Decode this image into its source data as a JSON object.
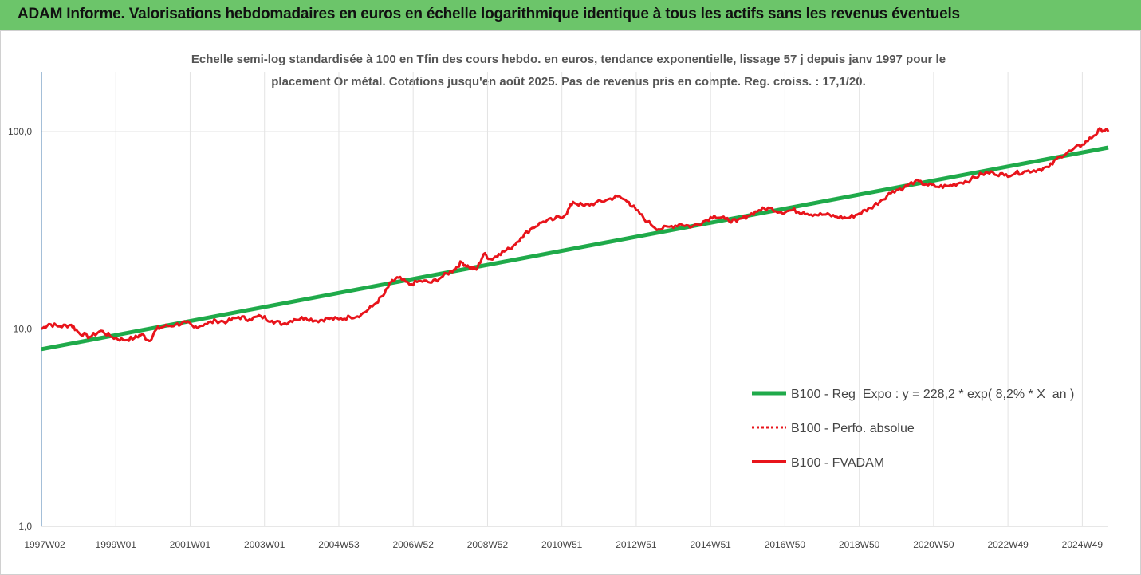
{
  "header": {
    "title": "ADAM Informe. Valorisations hebdomadaires en euros en échelle logarithmique identique à tous les actifs sans les revenus éventuels"
  },
  "colors": {
    "title_bar": "#6cc56a",
    "regression": "#1faa4a",
    "series": "#e8141b",
    "corner": "#f0b400"
  },
  "chart_data": {
    "type": "line",
    "subtitle_lines": [
      "Echelle semi-log standardisée à 100 en Tfin des cours hebdo. en euros, tendance exponentielle, lissage 57 j depuis janv 1997 pour le",
      "placement Or métal. Cotations jusqu'en août 2025. Pas de revenus pris en compte. Reg. croiss. : 17,1/20."
    ],
    "y_scale": "log",
    "ylim": [
      1,
      200
    ],
    "y_ticks": [
      "1,0",
      "10,0",
      "100,0"
    ],
    "y_tick_values": [
      1,
      10,
      100
    ],
    "x_range": [
      1997.0,
      2025.7
    ],
    "x_tick_labels": [
      "1997W02",
      "1999W01",
      "2001W01",
      "2003W01",
      "2004W53",
      "2006W52",
      "2008W52",
      "2010W51",
      "2012W51",
      "2014W51",
      "2016W50",
      "2018W50",
      "2020W50",
      "2022W49",
      "2024W49"
    ],
    "x_tick_positions": [
      1997.0,
      1999.0,
      2001.0,
      2003.0,
      2005.0,
      2007.0,
      2009.0,
      2011.0,
      2013.0,
      2015.0,
      2017.0,
      2019.0,
      2021.0,
      2023.0,
      2025.0
    ],
    "grid": "vertical and horizontal gridlines",
    "legend_position": "bottom-right",
    "series": [
      {
        "name": "B100 - Reg_Expo : y = 228,2 * exp( 8,2% *  X_an )",
        "style": "solid-thick",
        "color": "#1faa4a",
        "x": [
          1997.0,
          2025.7
        ],
        "y": [
          7.9,
          83
        ]
      },
      {
        "name": "B100 - Perfo. absolue",
        "style": "dotted",
        "color": "#e8141b",
        "x": [],
        "y": []
      },
      {
        "name": "B100 - FVADAM",
        "style": "solid",
        "color": "#e8141b",
        "x": [
          1997.0,
          1997.2,
          1997.5,
          1997.8,
          1998.0,
          1998.3,
          1998.6,
          1998.9,
          1999.2,
          1999.5,
          1999.7,
          1999.9,
          2000.1,
          2000.3,
          2000.6,
          2000.9,
          2001.1,
          2001.4,
          2001.7,
          2002.0,
          2002.3,
          2002.6,
          2002.9,
          2003.2,
          2003.5,
          2003.8,
          2004.1,
          2004.4,
          2004.7,
          2005.0,
          2005.3,
          2005.6,
          2005.9,
          2006.2,
          2006.4,
          2006.6,
          2006.9,
          2007.2,
          2007.5,
          2007.8,
          2008.1,
          2008.3,
          2008.5,
          2008.7,
          2008.9,
          2009.1,
          2009.3,
          2009.6,
          2009.9,
          2010.2,
          2010.5,
          2010.8,
          2011.1,
          2011.3,
          2011.6,
          2011.9,
          2012.2,
          2012.5,
          2012.8,
          2013.0,
          2013.3,
          2013.6,
          2013.9,
          2014.2,
          2014.5,
          2014.8,
          2015.1,
          2015.4,
          2015.7,
          2016.0,
          2016.3,
          2016.6,
          2016.9,
          2017.2,
          2017.5,
          2017.8,
          2018.1,
          2018.4,
          2018.7,
          2019.0,
          2019.3,
          2019.6,
          2019.9,
          2020.2,
          2020.5,
          2020.8,
          2021.1,
          2021.4,
          2021.7,
          2022.0,
          2022.3,
          2022.6,
          2022.9,
          2023.2,
          2023.5,
          2023.8,
          2024.1,
          2024.4,
          2024.7,
          2025.0,
          2025.3,
          2025.5,
          2025.7
        ],
        "y": [
          10.0,
          10.6,
          10.3,
          10.5,
          9.6,
          9.1,
          9.8,
          9.1,
          8.8,
          9.0,
          9.4,
          8.7,
          10.0,
          10.3,
          10.5,
          10.8,
          10.2,
          10.6,
          11.0,
          10.9,
          11.5,
          11.2,
          11.6,
          11.0,
          10.6,
          11.2,
          11.4,
          11.0,
          11.3,
          11.2,
          11.5,
          11.8,
          13.0,
          14.8,
          17.2,
          18.2,
          16.8,
          17.5,
          17.2,
          18.5,
          20.0,
          21.8,
          20.6,
          20.0,
          24.0,
          22.5,
          24.0,
          25.5,
          29.0,
          32.5,
          35.0,
          36.0,
          38.0,
          44.0,
          42.0,
          43.5,
          45.0,
          47.0,
          44.0,
          40.0,
          35.0,
          32.0,
          33.0,
          34.0,
          33.0,
          35.0,
          37.5,
          36.0,
          35.0,
          37.5,
          40.0,
          41.0,
          39.0,
          40.0,
          39.0,
          38.0,
          38.0,
          37.0,
          36.5,
          38.5,
          41.0,
          45.0,
          50.0,
          52.0,
          56.0,
          54.0,
          52.5,
          53.0,
          55.0,
          57.0,
          61.0,
          62.0,
          60.0,
          61.5,
          63.0,
          64.0,
          66.0,
          75.0,
          80.0,
          86.0,
          95.0,
          103.0,
          100.0
        ]
      }
    ]
  }
}
